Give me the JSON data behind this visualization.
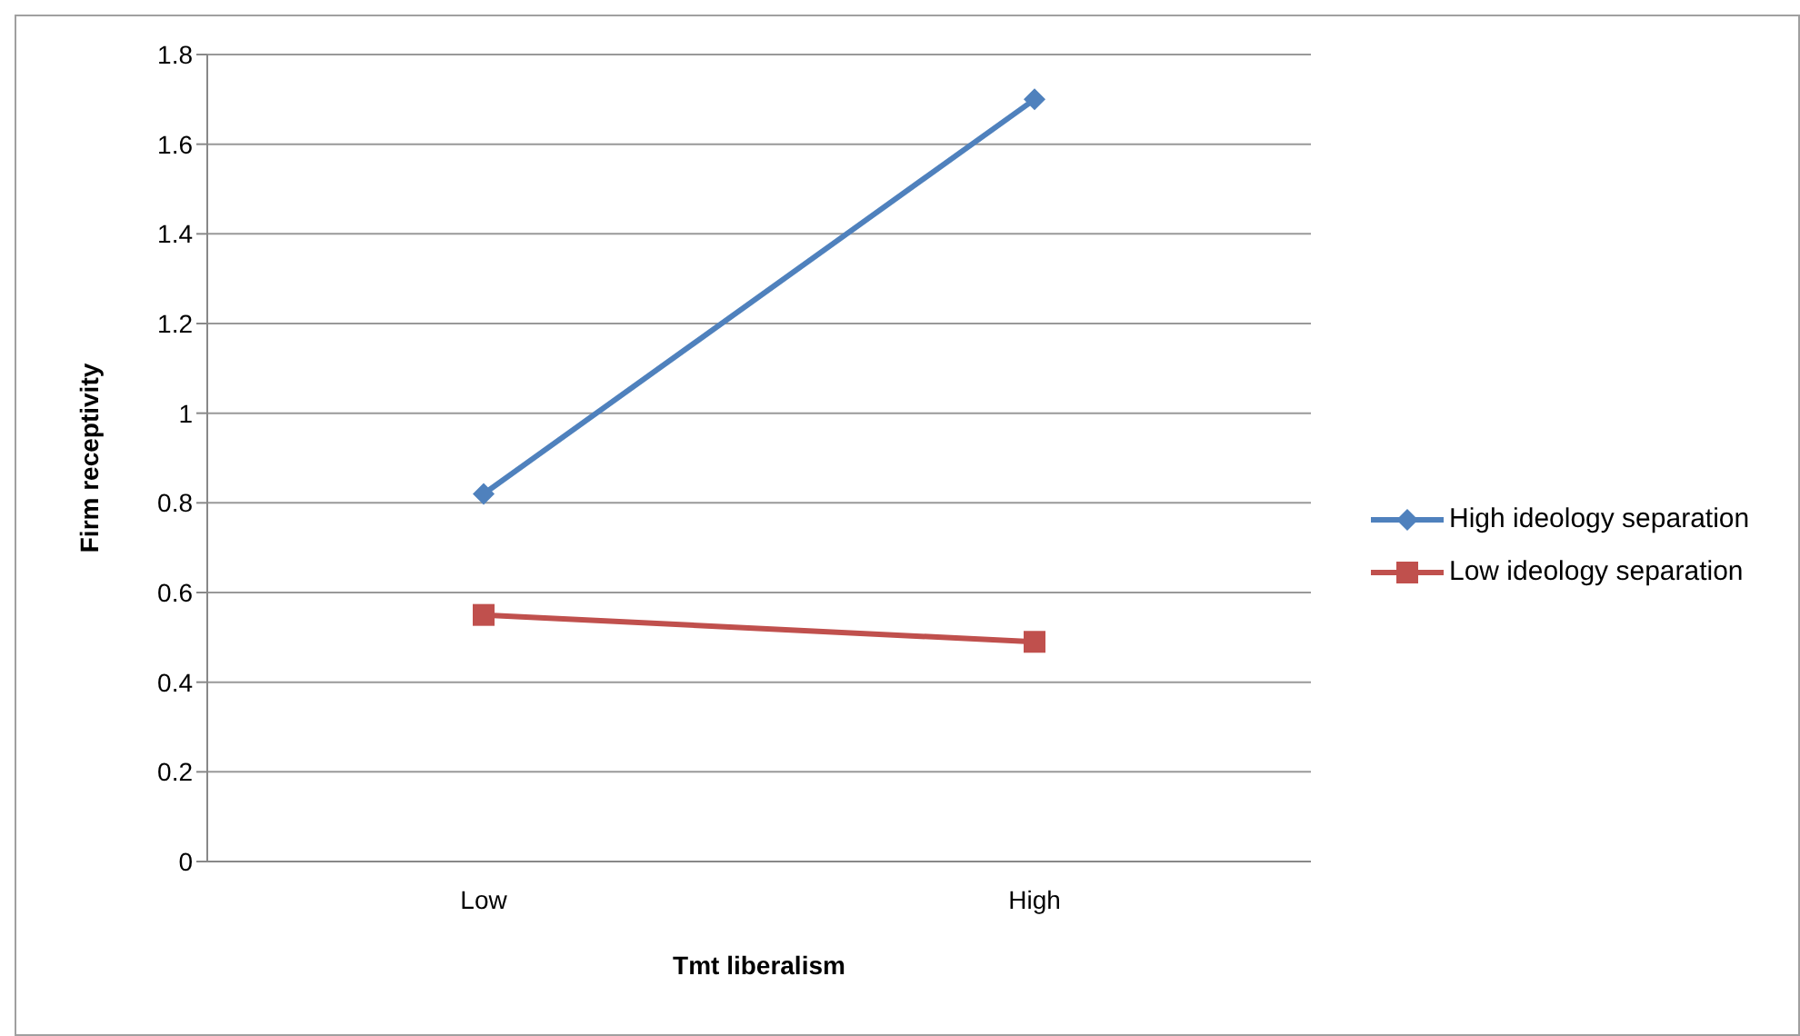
{
  "chart_data": {
    "type": "line",
    "xlabel": "Tmt liberalism",
    "ylabel": "Firm receptivity",
    "categories": [
      "Low",
      "High"
    ],
    "series": [
      {
        "name": "High ideology separation",
        "color": "#4f81bd",
        "marker": "diamond",
        "values": [
          0.82,
          1.7
        ]
      },
      {
        "name": "Low ideology separation",
        "color": "#c0504d",
        "marker": "square",
        "values": [
          0.55,
          0.49
        ]
      }
    ],
    "ylim": [
      0,
      1.8
    ],
    "yticks": [
      0,
      0.2,
      0.4,
      0.6,
      0.8,
      1,
      1.2,
      1.4,
      1.6,
      1.8
    ],
    "grid": "y",
    "legend": "right",
    "line_style": "solid"
  }
}
